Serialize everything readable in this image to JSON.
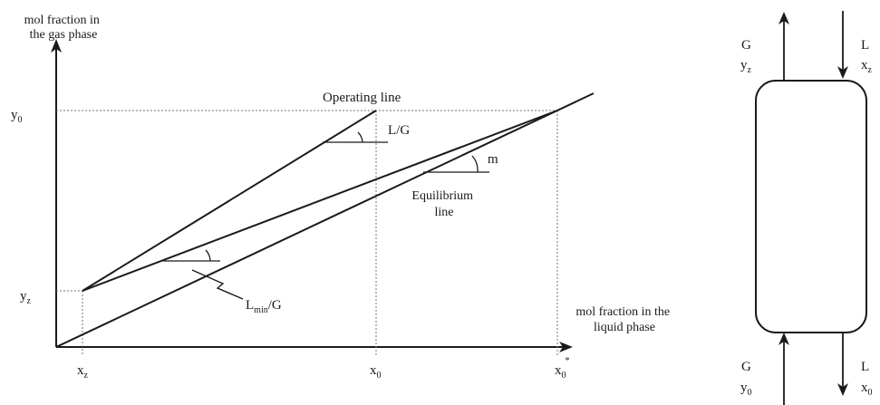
{
  "axes": {
    "y_title_line1": "mol fraction in",
    "y_title_line2": "the gas phase",
    "x_title_line1": "mol fraction in the",
    "x_title_line2": "liquid phase"
  },
  "tick_labels": {
    "y0_main": "y",
    "y0_sub": "0",
    "yz_main": "y",
    "yz_sub": "z",
    "xz_main": "x",
    "xz_sub": "z",
    "x0_main": "x",
    "x0_sub": "0",
    "x0star_main": "x",
    "x0star_sub": "0",
    "x0star_sup": "*"
  },
  "annotations": {
    "operating_line": "Operating line",
    "slope_LG": "L/G",
    "slope_m": "m",
    "equilibrium_line1": "Equilibrium",
    "equilibrium_line2": "line",
    "lmin_main": "L",
    "lmin_sub": "min",
    "lmin_tail": "/G"
  },
  "column": {
    "top_left_stream": "G",
    "top_left_comp_main": "y",
    "top_left_comp_sub": "z",
    "top_right_stream": "L",
    "top_right_comp_main": "x",
    "top_right_comp_sub": "z",
    "bottom_left_stream": "G",
    "bottom_left_comp_main": "y",
    "bottom_left_comp_sub": "0",
    "bottom_right_stream": "L",
    "bottom_right_comp_main": "x",
    "bottom_right_comp_sub": "0"
  },
  "colors": {
    "line": "#1a1a1a",
    "guide": "#777777"
  }
}
